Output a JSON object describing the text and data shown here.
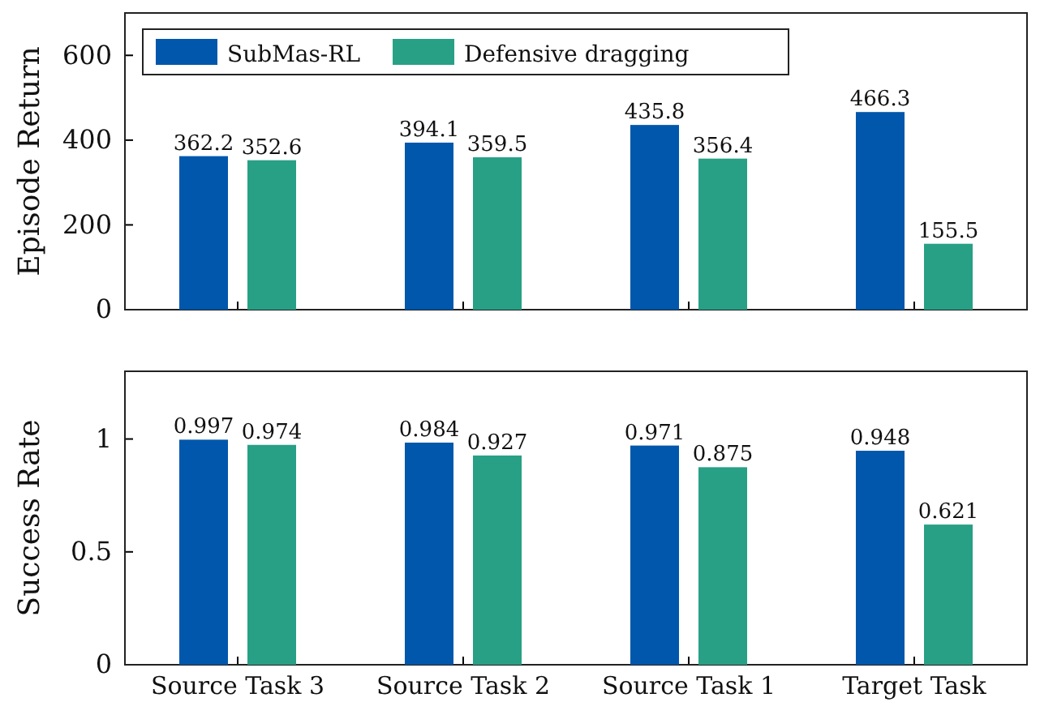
{
  "chart_data": [
    {
      "type": "bar",
      "ylabel": "Episode Return",
      "categories": [
        null,
        null,
        null,
        null
      ],
      "ylim": [
        0,
        700
      ],
      "yticks": [
        0,
        200,
        400,
        600
      ],
      "legend": "top",
      "data_labels": true,
      "grid": false,
      "series": [
        {
          "name": "SubMas-RL",
          "color": "#0057ab",
          "values": [
            362.2,
            394.1,
            435.8,
            466.3
          ]
        },
        {
          "name": "Defensive dragging",
          "color": "#28a085",
          "values": [
            352.6,
            359.5,
            356.4,
            155.5
          ]
        }
      ]
    },
    {
      "type": "bar",
      "ylabel": "Success Rate",
      "categories": [
        "Source Task 3",
        "Source Task 2",
        "Source Task 1",
        "Target Task"
      ],
      "ylim": [
        0,
        1.3
      ],
      "yticks": [
        0,
        0.5,
        1
      ],
      "data_labels": true,
      "grid": false,
      "series": [
        {
          "color": "#0057ab",
          "values": [
            0.997,
            0.984,
            0.971,
            0.948
          ]
        },
        {
          "color": "#28a085",
          "values": [
            0.974,
            0.927,
            0.875,
            0.621
          ]
        }
      ]
    }
  ]
}
